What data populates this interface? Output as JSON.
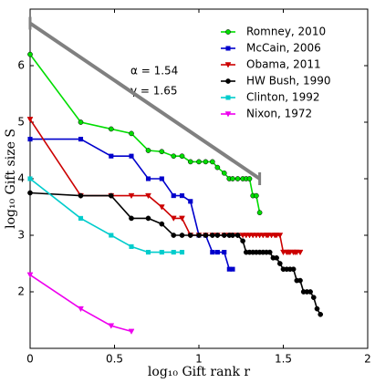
{
  "chart_data": {
    "type": "line",
    "xlabel": "log₁₀ Gift rank r",
    "ylabel": "log₁₀ Gift size S",
    "xlim": [
      0,
      2
    ],
    "ylim": [
      1,
      7
    ],
    "xticks": [
      0,
      0.5,
      1,
      1.5,
      2
    ],
    "yticks": [
      2,
      3,
      4,
      5,
      6
    ],
    "legend": "upper right",
    "annotations": [
      "α = 1.54",
      "γ = 1.65"
    ],
    "reference_line": {
      "color": "#808080",
      "x": [
        0,
        1.36
      ],
      "y": [
        6.75,
        4.0
      ]
    },
    "series": [
      {
        "name": "Romney, 2010",
        "color": "#00dd00",
        "marker": "circle",
        "x": [
          0,
          0.3,
          0.48,
          0.6,
          0.7,
          0.78,
          0.85,
          0.9,
          0.95,
          1.0,
          1.04,
          1.08,
          1.11,
          1.15,
          1.18,
          1.2,
          1.23,
          1.26,
          1.28,
          1.3,
          1.32,
          1.34,
          1.36
        ],
        "values": [
          6.2,
          5.0,
          4.88,
          4.8,
          4.5,
          4.48,
          4.4,
          4.4,
          4.3,
          4.3,
          4.3,
          4.3,
          4.2,
          4.1,
          4.0,
          4.0,
          4.0,
          4.0,
          4.0,
          4.0,
          3.7,
          3.7,
          3.4
        ]
      },
      {
        "name": "McCain, 2006",
        "color": "#0000cc",
        "marker": "square",
        "x": [
          0,
          0.3,
          0.48,
          0.6,
          0.7,
          0.78,
          0.85,
          0.9,
          0.95,
          1.0,
          1.04,
          1.08,
          1.11,
          1.15,
          1.18,
          1.2
        ],
        "values": [
          4.7,
          4.7,
          4.4,
          4.4,
          4.0,
          4.0,
          3.7,
          3.7,
          3.6,
          3.0,
          3.0,
          2.7,
          2.7,
          2.7,
          2.4,
          2.4
        ]
      },
      {
        "name": "Obama, 2011",
        "color": "#cc0000",
        "marker": "triangle",
        "x": [
          0,
          0.3,
          0.48,
          0.6,
          0.7,
          0.78,
          0.85,
          0.9,
          0.95,
          1.0,
          1.04,
          1.08,
          1.11,
          1.15,
          1.18,
          1.2,
          1.23,
          1.26,
          1.28,
          1.3,
          1.32,
          1.34,
          1.36,
          1.38,
          1.4,
          1.41,
          1.43,
          1.45,
          1.46,
          1.48,
          1.5,
          1.52,
          1.53,
          1.54,
          1.56,
          1.57,
          1.58,
          1.6
        ],
        "values": [
          5.05,
          3.7,
          3.7,
          3.7,
          3.7,
          3.5,
          3.3,
          3.3,
          3.0,
          3.0,
          3.0,
          3.0,
          3.0,
          3.0,
          3.0,
          3.0,
          3.0,
          3.0,
          3.0,
          3.0,
          3.0,
          3.0,
          3.0,
          3.0,
          3.0,
          3.0,
          3.0,
          3.0,
          3.0,
          3.0,
          2.7,
          2.7,
          2.7,
          2.7,
          2.7,
          2.7,
          2.7,
          2.7
        ]
      },
      {
        "name": "HW Bush, 1990",
        "color": "#000000",
        "marker": "circle",
        "x": [
          0,
          0.3,
          0.48,
          0.6,
          0.7,
          0.78,
          0.85,
          0.9,
          0.95,
          1.0,
          1.04,
          1.08,
          1.11,
          1.15,
          1.18,
          1.2,
          1.23,
          1.26,
          1.28,
          1.3,
          1.32,
          1.34,
          1.36,
          1.38,
          1.4,
          1.42,
          1.44,
          1.46,
          1.48,
          1.5,
          1.52,
          1.54,
          1.56,
          1.58,
          1.6,
          1.62,
          1.64,
          1.66,
          1.68,
          1.7,
          1.72
        ],
        "values": [
          3.75,
          3.7,
          3.7,
          3.3,
          3.3,
          3.2,
          3.0,
          3.0,
          3.0,
          3.0,
          3.0,
          3.0,
          3.0,
          3.0,
          3.0,
          3.0,
          3.0,
          2.9,
          2.7,
          2.7,
          2.7,
          2.7,
          2.7,
          2.7,
          2.7,
          2.7,
          2.6,
          2.6,
          2.5,
          2.4,
          2.4,
          2.4,
          2.4,
          2.2,
          2.2,
          2.0,
          2.0,
          2.0,
          1.9,
          1.7,
          1.6
        ]
      },
      {
        "name": "Clinton, 1992",
        "color": "#00cccc",
        "marker": "square",
        "x": [
          0,
          0.3,
          0.48,
          0.6,
          0.7,
          0.78,
          0.85,
          0.9
        ],
        "values": [
          4.0,
          3.3,
          3.0,
          2.8,
          2.7,
          2.7,
          2.7,
          2.7
        ]
      },
      {
        "name": "Nixon, 1972",
        "color": "#ee00ee",
        "marker": "triangle",
        "x": [
          0,
          0.3,
          0.48,
          0.6
        ],
        "values": [
          2.3,
          1.7,
          1.4,
          1.3
        ]
      }
    ]
  }
}
